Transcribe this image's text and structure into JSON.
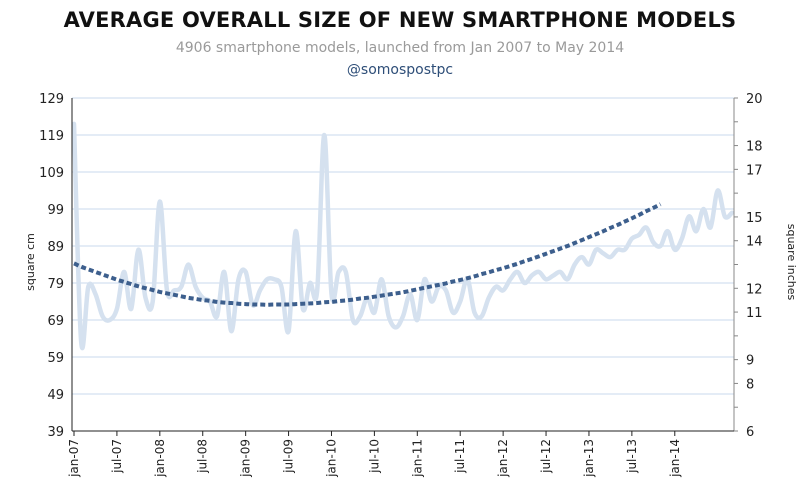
{
  "chart_data": {
    "type": "line",
    "title": "AVERAGE OVERALL SIZE OF NEW SMARTPHONE MODELS",
    "subtitle": "4906 smartphone models, launched from Jan 2007 to May 2014",
    "handle": "@somospostpc",
    "ylabel": "square cm",
    "ylabel_right": "square inches",
    "ylim": [
      39,
      129
    ],
    "ylim_right": [
      6,
      20
    ],
    "yticks": [
      39,
      49,
      59,
      69,
      79,
      89,
      99,
      109,
      119,
      129
    ],
    "yticks_right": [
      6,
      7,
      8,
      9,
      10,
      11,
      12,
      13,
      14,
      15,
      16,
      17,
      18,
      19,
      20
    ],
    "yticks_right_labels": [
      "6",
      "",
      "8",
      "9",
      "",
      "11",
      "12",
      "",
      "14",
      "15",
      "",
      "17",
      "18",
      "",
      "20"
    ],
    "x_tick_labels": [
      "jan-07",
      "jul-07",
      "jan-08",
      "jul-08",
      "jan-09",
      "jul-09",
      "jan-10",
      "jul-10",
      "jan-11",
      "jul-11",
      "jan-12",
      "jul-12",
      "jan-13",
      "jul-13",
      "jan-14"
    ],
    "grid": true,
    "legend": "none",
    "series": [
      {
        "values": [
          122,
          63,
          78,
          76,
          70,
          69,
          72,
          82,
          72,
          88,
          75,
          74,
          101,
          77,
          77,
          78,
          84,
          78,
          75,
          74,
          70,
          82,
          66,
          80,
          82,
          73,
          77,
          80,
          80,
          78,
          66,
          93,
          72,
          79,
          77,
          119,
          76,
          82,
          82,
          69,
          70,
          75,
          71,
          80,
          70,
          67,
          70,
          76,
          69,
          80,
          74,
          78,
          77,
          71,
          74,
          80,
          71,
          70,
          75,
          78,
          77,
          80,
          82,
          79,
          81,
          82,
          80,
          81,
          82,
          80,
          84,
          86,
          84,
          88,
          87,
          86,
          88,
          88,
          91,
          92,
          94,
          90,
          89,
          93,
          88,
          91,
          97,
          93,
          99,
          94,
          104,
          97,
          98
        ]
      },
      {
        "values": [
          84.3,
          83.4,
          82.7,
          82.0,
          81.3,
          80.6,
          79.9,
          79.3,
          78.7,
          78.1,
          77.6,
          77.1,
          76.6,
          76.2,
          75.8,
          75.4,
          75.0,
          74.7,
          74.4,
          74.2,
          73.9,
          73.7,
          73.6,
          73.4,
          73.3,
          73.2,
          73.2,
          73.1,
          73.2,
          73.2,
          73.2,
          73.3,
          73.4,
          73.5,
          73.6,
          73.8,
          73.9,
          74.1,
          74.3,
          74.5,
          74.8,
          75.0,
          75.3,
          75.6,
          75.9,
          76.2,
          76.5,
          76.9,
          77.3,
          77.7,
          78.1,
          78.5,
          78.9,
          79.4,
          79.8,
          80.3,
          80.8,
          81.4,
          81.9,
          82.5,
          83.0,
          83.6,
          84.2,
          84.9,
          85.5,
          86.2,
          86.9,
          87.6,
          88.3,
          89.0,
          89.8,
          90.6,
          91.4,
          92.2,
          93.0,
          93.9,
          94.7,
          95.6,
          96.5,
          97.4,
          98.4,
          99.3,
          100.3
        ]
      }
    ],
    "colors": {
      "series_line": "#d5e1ef",
      "trend_line": "#3d5f8d",
      "gridline": "#c9d9ec",
      "axis": "#222222"
    }
  }
}
